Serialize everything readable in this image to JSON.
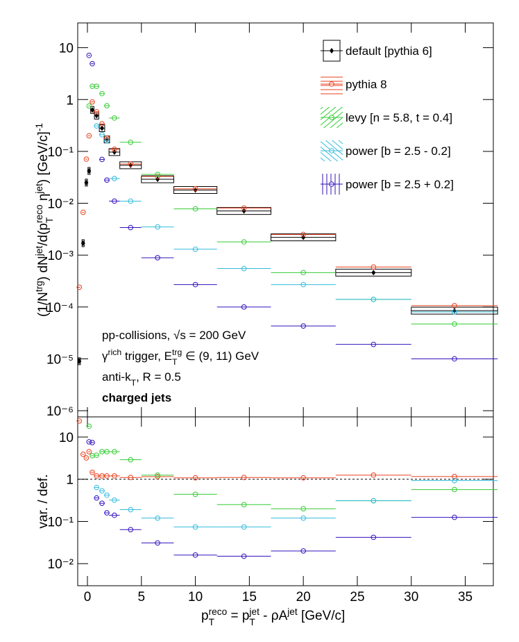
{
  "chart_data": [
    {
      "type": "scatter",
      "log_y": true,
      "ylabel": [
        {
          "text": "(1/N"
        },
        {
          "text": "trg",
          "shift": "super"
        },
        {
          "text": ") dN"
        },
        {
          "text": "jet",
          "shift": "super"
        },
        {
          "text": "/d(p"
        },
        {
          "text": "T",
          "shift": "sub"
        },
        {
          "text": "reco",
          "shift": "super"
        },
        {
          "text": " η"
        },
        {
          "text": "jet",
          "shift": "super"
        },
        {
          "text": ") [GeV/c]"
        },
        {
          "text": "-1",
          "shift": "super"
        }
      ],
      "xlim": [
        -0.9,
        37.6
      ],
      "xticks": [
        0,
        5,
        10,
        15,
        20,
        25,
        30,
        35
      ],
      "ylim": [
        7.6e-07,
        30
      ],
      "yticks": [
        10,
        1,
        {
          "value": 0.1,
          "label": "10⁻¹"
        },
        {
          "value": 0.01,
          "label": "10⁻²"
        },
        {
          "value": 0.001,
          "label": "10⁻³"
        },
        {
          "value": 0.0001,
          "label": "10⁻⁴"
        },
        {
          "value": 1e-05,
          "label": "10⁻⁵"
        },
        {
          "value": 1e-06,
          "label": "10⁻⁶"
        }
      ],
      "x": [
        -0.75,
        -0.4,
        -0.1,
        0.15,
        0.45,
        0.85,
        1.35,
        1.8,
        2.5,
        4,
        6.5,
        10,
        14.5,
        20,
        26.5,
        34
      ],
      "xerr": [
        0.1,
        0.1,
        0.1,
        0.1,
        0.15,
        0.2,
        0.25,
        0.25,
        0.5,
        1,
        1.5,
        2,
        2.5,
        3,
        3.5,
        4
      ],
      "legend": "top-right",
      "series": [
        {
          "name": "default [pythia 6]",
          "color": "#000000",
          "marker": "filled-diamond",
          "fill_style": "box",
          "values": [
            9e-06,
            0.0017,
            0.025,
            0.042,
            0.63,
            0.49,
            0.28,
            0.17,
            0.097,
            0.054,
            0.029,
            0.018,
            0.0071,
            0.0022,
            0.00046,
            8.5e-05
          ]
        },
        {
          "name": "pythia 8",
          "color": "#e8401c",
          "marker": "open-circle",
          "fill_style": "hatch-horizontal",
          "values": [
            0.00024,
            0.0067,
            0.071,
            0.2,
            0.9,
            0.58,
            0.34,
            0.18,
            0.11,
            0.057,
            0.033,
            0.019,
            0.0081,
            0.0025,
            0.00059,
            0.000106
          ]
        },
        {
          "name": "levy [n = 5.8, t = 0.4]",
          "color": "#33cc33",
          "marker": "open-circle",
          "fill_style": "hatch-diagonal-up",
          "values": [
            null,
            null,
            null,
            0.75,
            1.8,
            1.8,
            1.3,
            0.76,
            0.44,
            0.15,
            0.036,
            0.0078,
            0.0018,
            0.00046,
            0.00014,
            4.7e-05
          ]
        },
        {
          "name": "power [b = 2.5 - 0.2]",
          "color": "#33bbdd",
          "marker": "open-circle",
          "fill_style": "hatch-diagonal-down",
          "values": [
            null,
            null,
            null,
            null,
            null,
            0.31,
            0.21,
            0.16,
            0.03,
            0.011,
            0.0035,
            0.0013,
            0.00055,
            0.00027,
            0.00014,
            8e-05
          ]
        },
        {
          "name": "power [b = 2.5 + 0.2]",
          "color": "#3311bb",
          "marker": "open-circle",
          "fill_style": "hatch-vertical",
          "values": [
            null,
            null,
            null,
            7.1,
            4.9,
            null,
            0.07,
            0.028,
            0.011,
            0.0034,
            0.00089,
            0.00027,
            0.0001,
            4.3e-05,
            1.9e-05,
            1e-05
          ]
        }
      ],
      "annotations": [
        {
          "segments": [
            {
              "text": "pp-collisions, √s = 200 GeV"
            }
          ]
        },
        {
          "segments": [
            {
              "text": "γ"
            },
            {
              "text": "rich",
              "shift": "super"
            },
            {
              "text": " trigger, E"
            },
            {
              "text": "T",
              "shift": "sub"
            },
            {
              "text": "trg",
              "shift": "super"
            },
            {
              "text": " ∈ (9, 11) GeV"
            }
          ]
        },
        {
          "segments": [
            {
              "text": "anti-k"
            },
            {
              "text": "T",
              "shift": "sub"
            },
            {
              "text": ", R = 0.5"
            }
          ]
        },
        {
          "segments": [
            {
              "text": "charged jets"
            }
          ],
          "bold": true
        }
      ]
    },
    {
      "type": "scatter",
      "log_y": true,
      "ylabel": [
        {
          "text": "var. / def."
        }
      ],
      "xlabel": [
        {
          "text": "p"
        },
        {
          "text": "T",
          "shift": "sub"
        },
        {
          "text": "reco",
          "shift": "super"
        },
        {
          "text": " = p"
        },
        {
          "text": "T",
          "shift": "sub"
        },
        {
          "text": "jet",
          "shift": "super"
        },
        {
          "text": " - ρA"
        },
        {
          "text": "jet",
          "shift": "super"
        },
        {
          "text": " [GeV/c]"
        }
      ],
      "xlim": [
        -0.9,
        37.6
      ],
      "xticks": [
        0,
        5,
        10,
        15,
        20,
        25,
        30,
        35
      ],
      "ylim": [
        0.003,
        30
      ],
      "yticks": [
        10,
        1,
        {
          "value": 0.1,
          "label": "10⁻¹"
        },
        {
          "value": 0.01,
          "label": "10⁻²"
        }
      ],
      "reference_line": 1,
      "x": [
        -0.75,
        -0.4,
        -0.1,
        0.15,
        0.45,
        0.85,
        1.35,
        1.8,
        2.5,
        4,
        6.5,
        10,
        14.5,
        20,
        26.5,
        34
      ],
      "xerr": [
        0.1,
        0.1,
        0.1,
        0.1,
        0.15,
        0.2,
        0.25,
        0.25,
        0.5,
        1,
        1.5,
        2,
        2.5,
        3,
        3.5,
        4
      ],
      "series": [
        {
          "color": "#e8401c",
          "marker": "open-circle",
          "values": [
            24,
            3.9,
            3.2,
            4.5,
            1.46,
            1.2,
            1.2,
            1.2,
            1.2,
            1.1,
            1.15,
            1.08,
            1.1,
            1.08,
            1.25,
            1.16
          ]
        },
        {
          "color": "#33cc33",
          "marker": "open-circle",
          "values": [
            null,
            null,
            null,
            18,
            3.6,
            3.7,
            4.5,
            4.5,
            4.5,
            2.9,
            1.25,
            0.44,
            0.25,
            0.2,
            0.31,
            0.57
          ]
        },
        {
          "color": "#33bbdd",
          "marker": "open-circle",
          "values": [
            null,
            null,
            null,
            null,
            null,
            0.64,
            0.53,
            0.42,
            0.32,
            0.19,
            0.12,
            0.074,
            0.074,
            0.12,
            0.31,
            0.93
          ]
        },
        {
          "color": "#3311bb",
          "marker": "open-circle",
          "values": [
            null,
            null,
            null,
            7.7,
            7.4,
            0.36,
            0.27,
            0.16,
            0.14,
            0.064,
            0.031,
            0.016,
            0.015,
            0.02,
            0.042,
            0.125
          ]
        }
      ]
    }
  ]
}
